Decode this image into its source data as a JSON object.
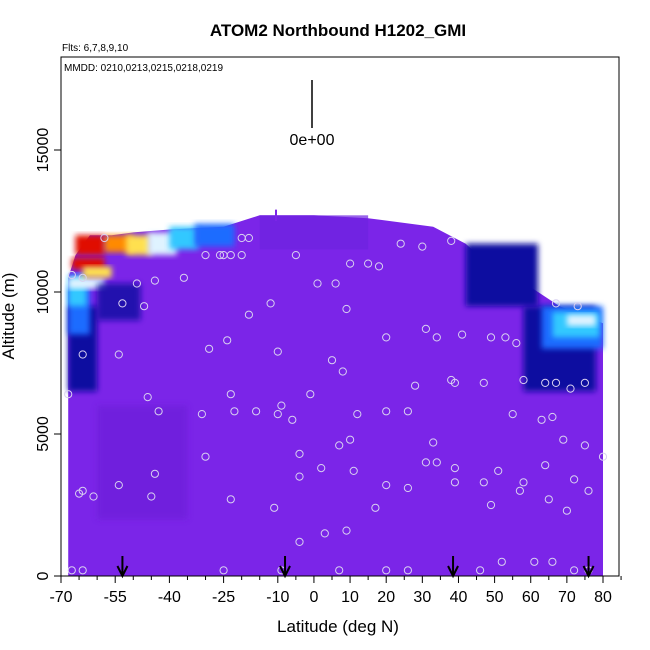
{
  "chart_data": {
    "type": "heatmap",
    "title": "ATOM2 Northbound H1202_GMI",
    "flights_note": "Flts: 6,7,8,9,10",
    "dates_note": "MMDD: 0210,0213,0215,0218,0219",
    "xlabel": "Latitude (deg N)",
    "ylabel": "Altitude (m)",
    "xlim": [
      -70,
      85
    ],
    "ylim": [
      0,
      18200
    ],
    "x_ticks": [
      -70,
      -55,
      -40,
      -25,
      -10,
      0,
      10,
      20,
      30,
      40,
      50,
      60,
      70,
      80
    ],
    "y_ticks": [
      0,
      5000,
      10000,
      15000
    ],
    "scale_label": "0e+00",
    "background_color": "#8a2be2",
    "colors": {
      "base": "#7b25e8",
      "dark_blue": "#0a0aa0",
      "mid_blue": "#1e6cff",
      "cyan": "#33c8ff",
      "light": "#dff3ff",
      "yellow": "#ffe050",
      "orange": "#ff8a00",
      "red": "#e01000"
    },
    "features": [
      {
        "name": "south-upper-high",
        "lat": [
          -66,
          -58
        ],
        "alt": [
          11000,
          12300
        ],
        "level": "high"
      },
      {
        "name": "south-band",
        "lat": [
          -67,
          -52
        ],
        "alt": [
          6500,
          11000
        ],
        "level": "elevated"
      },
      {
        "name": "north-band",
        "lat": [
          50,
          80
        ],
        "alt": [
          6500,
          12000
        ],
        "level": "elevated"
      }
    ],
    "profile_latitudes": [
      -53,
      -8,
      38.5,
      76
    ],
    "sample_points": [
      [
        -67,
        200
      ],
      [
        -64,
        200
      ],
      [
        -25,
        200
      ],
      [
        -9,
        200
      ],
      [
        7,
        200
      ],
      [
        20,
        200
      ],
      [
        26,
        200
      ],
      [
        46,
        200
      ],
      [
        72,
        200
      ],
      [
        76,
        200
      ],
      [
        52,
        500
      ],
      [
        61,
        500
      ],
      [
        66,
        500
      ],
      [
        -4,
        1200
      ],
      [
        3,
        1500
      ],
      [
        9,
        1600
      ],
      [
        -64,
        3000
      ],
      [
        -61,
        2800
      ],
      [
        -54,
        3200
      ],
      [
        -45,
        2800
      ],
      [
        -44,
        3600
      ],
      [
        -23,
        2700
      ],
      [
        -11,
        2400
      ],
      [
        -4,
        3500
      ],
      [
        2,
        3800
      ],
      [
        11,
        3700
      ],
      [
        17,
        2400
      ],
      [
        20,
        3200
      ],
      [
        26,
        3100
      ],
      [
        31,
        4000
      ],
      [
        34,
        4000
      ],
      [
        39,
        3800
      ],
      [
        39,
        3300
      ],
      [
        47,
        3300
      ],
      [
        49,
        2500
      ],
      [
        51,
        3700
      ],
      [
        57,
        3000
      ],
      [
        58,
        3300
      ],
      [
        65,
        2700
      ],
      [
        64,
        3900
      ],
      [
        70,
        2300
      ],
      [
        72,
        3400
      ],
      [
        76,
        3000
      ],
      [
        -65,
        2900
      ],
      [
        -30,
        4200
      ],
      [
        -4,
        4300
      ],
      [
        7,
        4600
      ],
      [
        10,
        4800
      ],
      [
        33,
        4700
      ],
      [
        69,
        4800
      ],
      [
        75,
        4600
      ],
      [
        80,
        4200
      ],
      [
        -68,
        6400
      ],
      [
        -46,
        6300
      ],
      [
        -31,
        5700
      ],
      [
        -22,
        5800
      ],
      [
        -10,
        5700
      ],
      [
        -9,
        6000
      ],
      [
        -6,
        5500
      ],
      [
        -43,
        5800
      ],
      [
        -23,
        6400
      ],
      [
        12,
        5700
      ],
      [
        -1,
        6400
      ],
      [
        20,
        5800
      ],
      [
        26,
        5800
      ],
      [
        38,
        6900
      ],
      [
        39,
        6800
      ],
      [
        28,
        6700
      ],
      [
        47,
        6800
      ],
      [
        58,
        6900
      ],
      [
        55,
        5700
      ],
      [
        63,
        5500
      ],
      [
        66,
        5600
      ],
      [
        64,
        6800
      ],
      [
        67,
        6800
      ],
      [
        71,
        6600
      ],
      [
        75,
        6800
      ],
      [
        -16,
        5800
      ],
      [
        -64,
        7800
      ],
      [
        -54,
        7800
      ],
      [
        -29,
        8000
      ],
      [
        -10,
        7900
      ],
      [
        5,
        7600
      ],
      [
        8,
        7200
      ],
      [
        -24,
        8300
      ],
      [
        20,
        8400
      ],
      [
        31,
        8700
      ],
      [
        34,
        8400
      ],
      [
        41,
        8500
      ],
      [
        49,
        8400
      ],
      [
        53,
        8400
      ],
      [
        56,
        8200
      ],
      [
        -53,
        9600
      ],
      [
        -47,
        9500
      ],
      [
        -12,
        9600
      ],
      [
        -18,
        9200
      ],
      [
        9,
        9400
      ],
      [
        -49,
        10300
      ],
      [
        -44,
        10400
      ],
      [
        -36,
        10500
      ],
      [
        -64,
        10500
      ],
      [
        -30,
        11300
      ],
      [
        -26,
        11300
      ],
      [
        -25,
        11300
      ],
      [
        -23,
        11300
      ],
      [
        -20,
        11300
      ],
      [
        -5,
        11300
      ],
      [
        1,
        10300
      ],
      [
        6,
        10300
      ],
      [
        10,
        11000
      ],
      [
        15,
        11000
      ],
      [
        18,
        10900
      ],
      [
        -67,
        10600
      ],
      [
        -20,
        11900
      ],
      [
        -18,
        11900
      ],
      [
        24,
        11700
      ],
      [
        30,
        11600
      ],
      [
        38,
        11800
      ],
      [
        -58,
        11900
      ],
      [
        67,
        9600
      ],
      [
        73,
        9500
      ]
    ]
  }
}
